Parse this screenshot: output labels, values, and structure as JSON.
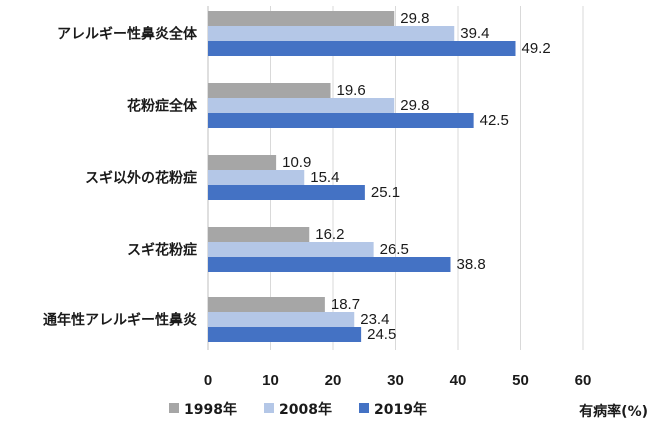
{
  "chart_data": {
    "type": "bar",
    "orientation": "horizontal",
    "categories": [
      "アレルギー性鼻炎全体",
      "花粉症全体",
      "スギ以外の花粉症",
      "スギ花粉症",
      "通年性アレルギー性鼻炎"
    ],
    "series": [
      {
        "name": "1998年",
        "color": "#a6a6a6",
        "values": [
          29.8,
          19.6,
          10.9,
          16.2,
          18.7
        ],
        "labels": [
          "29.8",
          "19.6",
          "10.9",
          "16.2",
          "18.7"
        ]
      },
      {
        "name": "2008年",
        "color": "#b4c7e7",
        "values": [
          39.4,
          29.8,
          15.4,
          26.5,
          23.4
        ],
        "labels": [
          "39.4",
          "29.8",
          "15.4",
          "26.5",
          "23.4"
        ]
      },
      {
        "name": "2019年",
        "color": "#4472c4",
        "values": [
          49.2,
          42.5,
          25.1,
          38.8,
          24.5
        ],
        "labels": [
          "49.2",
          "42.5",
          "25.1",
          "38.8",
          "24.5"
        ]
      }
    ],
    "xlim": [
      0,
      60
    ],
    "xticks": [
      0,
      10,
      20,
      30,
      40,
      50,
      60
    ],
    "xtick_labels": [
      "0",
      "10",
      "20",
      "30",
      "40",
      "50",
      "60"
    ],
    "xlabel": "有病率(%)",
    "grid": "vertical",
    "legend_position": "bottom"
  }
}
